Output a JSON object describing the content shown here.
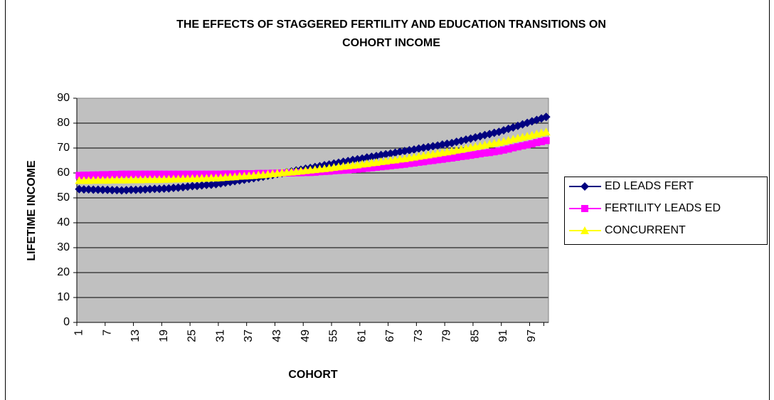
{
  "chart_data": {
    "type": "line",
    "title": [
      "THE EFFECTS OF STAGGERED FERTILITY AND EDUCATION TRANSITIONS ON",
      "COHORT INCOME"
    ],
    "x_label": "COHORT",
    "y_label": "LIFETIME INCOME",
    "categories": [
      1,
      null,
      null,
      null,
      null,
      null,
      7,
      null,
      null,
      null,
      null,
      null,
      13,
      null,
      null,
      null,
      null,
      null,
      19,
      null,
      null,
      null,
      null,
      null,
      25,
      null,
      null,
      null,
      null,
      null,
      31,
      null,
      null,
      null,
      null,
      null,
      37,
      null,
      null,
      null,
      null,
      null,
      43,
      null,
      null,
      null,
      null,
      null,
      49,
      null,
      null,
      null,
      null,
      null,
      55,
      null,
      null,
      null,
      null,
      null,
      61,
      null,
      null,
      null,
      null,
      null,
      67,
      null,
      null,
      null,
      null,
      null,
      73,
      null,
      null,
      null,
      null,
      null,
      79,
      null,
      null,
      null,
      null,
      null,
      85,
      null,
      null,
      null,
      null,
      null,
      91,
      null,
      null,
      null,
      null,
      null,
      97,
      null,
      null,
      null
    ],
    "ylim": [
      0,
      90
    ],
    "yticks": [
      0,
      10,
      20,
      30,
      40,
      50,
      60,
      70,
      80,
      90
    ],
    "grid": true,
    "legend": "right",
    "plot_background": "#c0c0c0",
    "series": [
      {
        "name": "ED LEADS FERT",
        "color": "#000080",
        "marker": "diamond",
        "values": [
          53.5,
          53.4,
          53.4,
          53.3,
          53.3,
          53.2,
          53.2,
          53.1,
          53.1,
          53.0,
          53.1,
          53.2,
          53.2,
          53.3,
          53.4,
          53.5,
          53.6,
          53.6,
          53.7,
          53.8,
          54.0,
          54.1,
          54.3,
          54.5,
          54.7,
          54.8,
          55.0,
          55.2,
          55.3,
          55.5,
          55.8,
          56.1,
          56.4,
          56.7,
          57.0,
          57.3,
          57.6,
          57.9,
          58.2,
          58.5,
          58.9,
          59.2,
          59.6,
          59.9,
          60.3,
          60.6,
          61.0,
          61.3,
          61.7,
          62.0,
          62.4,
          62.7,
          63.1,
          63.4,
          63.8,
          64.1,
          64.5,
          64.8,
          65.2,
          65.5,
          65.8,
          66.2,
          66.5,
          66.8,
          67.2,
          67.5,
          67.8,
          68.1,
          68.5,
          68.8,
          69.1,
          69.4,
          69.8,
          70.1,
          70.4,
          70.7,
          71.0,
          71.4,
          71.7,
          72.0,
          72.5,
          72.9,
          73.4,
          73.8,
          74.3,
          74.7,
          75.2,
          75.6,
          76.1,
          76.5,
          77.1,
          77.7,
          78.3,
          78.9,
          79.5,
          80.1,
          80.7,
          81.3,
          81.9,
          82.5
        ]
      },
      {
        "name": "FERTILITY LEADS ED",
        "color": "#ff00ff",
        "marker": "square",
        "values": [
          59.0,
          59.1,
          59.1,
          59.2,
          59.2,
          59.3,
          59.3,
          59.4,
          59.4,
          59.5,
          59.5,
          59.5,
          59.5,
          59.5,
          59.5,
          59.5,
          59.5,
          59.5,
          59.5,
          59.5,
          59.5,
          59.5,
          59.5,
          59.5,
          59.5,
          59.5,
          59.5,
          59.5,
          59.5,
          59.5,
          59.5,
          59.6,
          59.6,
          59.6,
          59.7,
          59.7,
          59.7,
          59.7,
          59.8,
          59.8,
          59.8,
          59.9,
          59.9,
          60.0,
          60.0,
          60.0,
          60.1,
          60.1,
          60.2,
          60.2,
          60.3,
          60.5,
          60.6,
          60.7,
          60.9,
          61.0,
          61.1,
          61.2,
          61.4,
          61.5,
          61.7,
          61.9,
          62.1,
          62.3,
          62.5,
          62.7,
          62.9,
          63.1,
          63.3,
          63.5,
          63.8,
          64.0,
          64.3,
          64.5,
          64.8,
          65.0,
          65.3,
          65.5,
          65.8,
          66.0,
          66.3,
          66.6,
          66.8,
          67.1,
          67.4,
          67.7,
          68.0,
          68.2,
          68.5,
          68.8,
          69.2,
          69.6,
          70.1,
          70.5,
          70.9,
          71.3,
          71.7,
          72.2,
          72.6,
          73.0
        ]
      },
      {
        "name": "CONCURRENT",
        "color": "#ffff00",
        "marker": "triangle",
        "values": [
          57.0,
          57.0,
          57.0,
          57.1,
          57.1,
          57.1,
          57.1,
          57.2,
          57.2,
          57.2,
          57.2,
          57.3,
          57.3,
          57.3,
          57.4,
          57.4,
          57.4,
          57.4,
          57.5,
          57.5,
          57.6,
          57.6,
          57.7,
          57.7,
          57.8,
          57.8,
          57.9,
          57.9,
          58.0,
          58.0,
          58.1,
          58.3,
          58.4,
          58.5,
          58.7,
          58.8,
          58.9,
          59.0,
          59.2,
          59.3,
          59.5,
          59.7,
          59.9,
          60.1,
          60.3,
          60.4,
          60.6,
          60.8,
          61.0,
          61.2,
          61.4,
          61.6,
          61.8,
          62.0,
          62.3,
          62.5,
          62.7,
          62.9,
          63.1,
          63.3,
          63.6,
          63.8,
          64.1,
          64.3,
          64.6,
          64.8,
          65.1,
          65.3,
          65.6,
          65.8,
          66.1,
          66.4,
          66.7,
          67.0,
          67.3,
          67.6,
          67.9,
          68.2,
          68.5,
          68.8,
          69.2,
          69.5,
          69.9,
          70.2,
          70.6,
          70.9,
          71.3,
          71.6,
          72.0,
          72.3,
          72.7,
          73.1,
          73.6,
          74.0,
          74.4,
          74.8,
          75.2,
          75.7,
          76.1,
          76.5
        ]
      }
    ]
  }
}
